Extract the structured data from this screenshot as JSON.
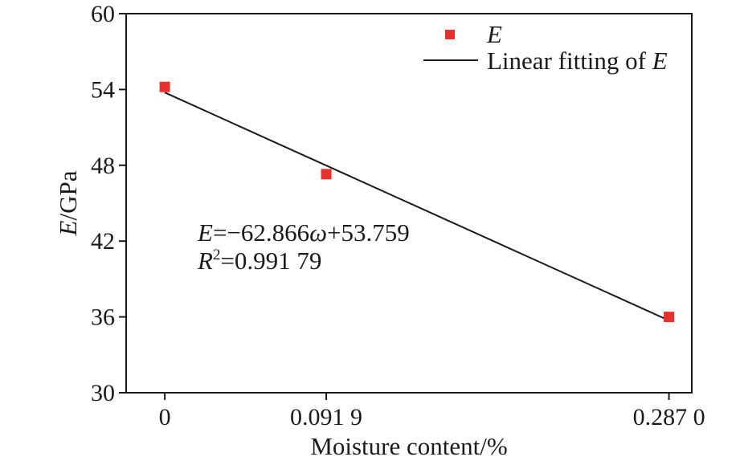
{
  "chart_data": {
    "type": "scatter",
    "xlabel": "Moisture content/%",
    "ylabel": {
      "var": "E",
      "unit": "/GPa"
    },
    "xlim": [
      -0.022,
      0.3
    ],
    "ylim": [
      30,
      60
    ],
    "xticks": [
      {
        "value": 0,
        "label": "0"
      },
      {
        "value": 0.0919,
        "label": "0.091 9"
      },
      {
        "value": 0.287,
        "label": "0.287 0"
      }
    ],
    "yticks": [
      30,
      36,
      42,
      48,
      54,
      60
    ],
    "series": [
      {
        "name": "E",
        "kind": "points",
        "marker": "square",
        "color": "#e8312f",
        "x": [
          0,
          0.0919,
          0.287
        ],
        "y": [
          54.2,
          47.3,
          36.0
        ]
      },
      {
        "name": "Linear fitting of E",
        "kind": "line",
        "color": "#1a1a1a",
        "slope": -62.866,
        "intercept": 53.759,
        "x_range": [
          0,
          0.287
        ]
      }
    ],
    "legend": {
      "position": "top-right",
      "entries": [
        {
          "italic_part": "E",
          "text": ""
        },
        {
          "text": "Linear fitting of ",
          "italic_part": "E"
        }
      ]
    },
    "annotation": {
      "line1": {
        "var": "E",
        "eq": "=−62.866",
        "omega": "ω",
        "rest": "+53.759"
      },
      "line2": {
        "var": "R",
        "sup": "2",
        "rest": "=0.991 79"
      }
    },
    "grid": false
  }
}
